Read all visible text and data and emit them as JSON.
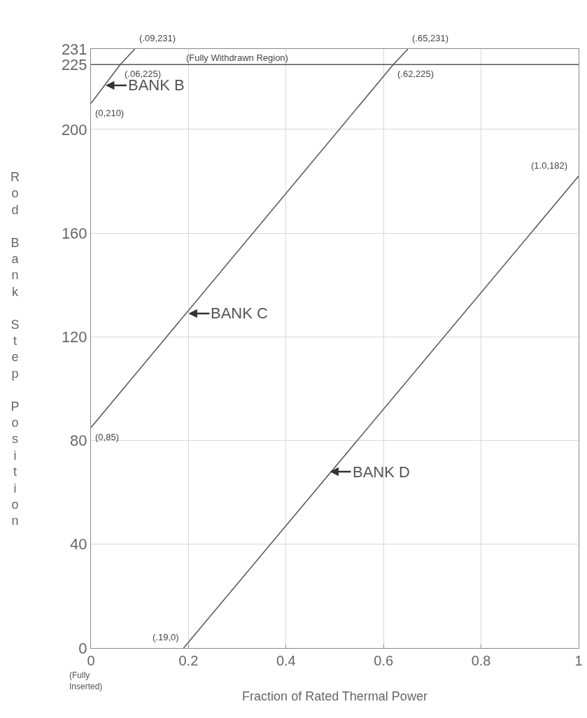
{
  "chart_data": {
    "type": "line",
    "xlabel": "Fraction of Rated Thermal Power",
    "ylabel": "Rod Bank Step Position",
    "series": [
      {
        "color": "#555555",
        "x": [
          0,
          0.06,
          0.09
        ],
        "values": [
          210,
          225,
          231
        ]
      },
      {
        "color": "#555555",
        "x": [
          0,
          0.62,
          0.65
        ],
        "values": [
          85,
          225,
          231
        ]
      },
      {
        "color": "#555555",
        "x": [
          0.19,
          1.0
        ],
        "values": [
          0,
          182
        ]
      }
    ],
    "xlim": [
      0,
      1
    ],
    "xticks": [
      0,
      0.2,
      0.4,
      0.6,
      0.8,
      {
        "value": 1,
        "label": "1"
      }
    ],
    "ylim": [
      0,
      231
    ],
    "yticks": [
      0,
      40,
      80,
      120,
      160,
      200,
      225,
      231
    ],
    "grid": true,
    "marker": "none",
    "line_style": "solid",
    "ref_lines": [
      {
        "axis": "y",
        "value": 225,
        "label": "(Fully Withdrawn Region)",
        "color": "#555555"
      }
    ],
    "annotations": [
      {
        "text": "BANK B",
        "x": 0.03,
        "y": 217
      },
      {
        "text": "BANK C",
        "x": 0.2,
        "y": 129
      },
      {
        "text": "BANK D",
        "x": 0.49,
        "y": 68
      },
      {
        "text": "(.09,231)",
        "x": 0.09,
        "y": 231
      },
      {
        "text": "(.65,231)",
        "x": 0.65,
        "y": 231
      },
      {
        "text": "(.06,225)",
        "x": 0.06,
        "y": 225
      },
      {
        "text": "(.62,225)",
        "x": 0.62,
        "y": 225
      },
      {
        "text": "(0,210)",
        "x": 0,
        "y": 210
      },
      {
        "text": "(0,85)",
        "x": 0,
        "y": 85
      },
      {
        "text": "(.19,0)",
        "x": 0.19,
        "y": 0
      },
      {
        "text": "(1.0,182)",
        "x": 1.0,
        "y": 182
      },
      "(Fully Inserted)"
    ]
  }
}
